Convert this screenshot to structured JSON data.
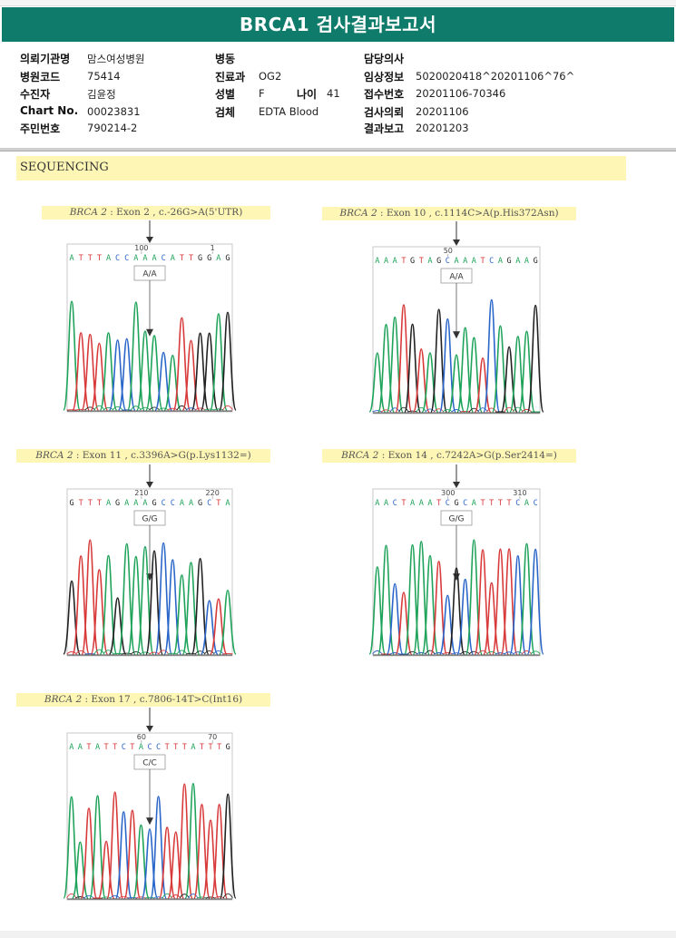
{
  "report": {
    "title": "BRCA1 검사결과보고서"
  },
  "patient": {
    "col1": [
      {
        "label": "의뢰기관명",
        "value": "맘스여성병원"
      },
      {
        "label": "병원코드",
        "value": "75414"
      },
      {
        "label": "수진자",
        "value": "김윤정"
      },
      {
        "label": "Chart No.",
        "value": "00023831"
      },
      {
        "label": "주민번호",
        "value": "790214-2"
      }
    ],
    "col2": [
      {
        "label": "병동",
        "value": ""
      },
      {
        "label": "진료과",
        "value": "OG2"
      },
      {
        "label": "성별",
        "value": "F"
      },
      {
        "label": "검체",
        "value": "EDTA Blood"
      }
    ],
    "age": {
      "label": "나이",
      "value": "41"
    },
    "col3": [
      {
        "label": "담당의사",
        "value": ""
      },
      {
        "label": "임상정보",
        "value": "5020020418^20201106^76^"
      },
      {
        "label": "접수번호",
        "value": "20201106-70346"
      },
      {
        "label": "검사의뢰",
        "value": "20201106"
      },
      {
        "label": "결과보고",
        "value": "20201203"
      }
    ]
  },
  "section": {
    "title": "SEQUENCING"
  },
  "colors": {
    "header": "#0f7b6b",
    "highlight": "#fdf6b4",
    "A": "#1fa35a",
    "C": "#2a66c9",
    "G": "#222222",
    "T": "#d83a3a"
  },
  "variants": [
    {
      "gene": "BRCA 2",
      "desc": " : Exon 2 , c.-26G>A(5'UTR)",
      "seq": "ATTTACCAAACATTGGAG",
      "pos_labels": [
        "100",
        "1"
      ],
      "genotype": "A/A"
    },
    {
      "gene": "BRCA 2",
      "desc": " : Exon 10 , c.1114C>A(p.His372Asn)",
      "seq": "AAATGTAGCAAATCAGAAG",
      "pos_labels": [
        "50"
      ],
      "genotype": "A/A"
    },
    {
      "gene": "BRCA 2",
      "desc": " : Exon 11 , c.3396A>G(p.Lys1132=)",
      "seq": "GTTTAGAAAGCCAAGCTA",
      "pos_labels": [
        "210",
        "220"
      ],
      "genotype": "G/G"
    },
    {
      "gene": "BRCA 2",
      "desc": " : Exon 14 , c.7242A>G(p.Ser2414=)",
      "seq": "AACTAAATCGCATTTTCAC",
      "pos_labels": [
        "300",
        "310"
      ],
      "genotype": "G/G"
    },
    {
      "gene": "BRCA 2",
      "desc": " : Exon 17 , c.7806-14T>C(Int16)",
      "seq": "AATATTCTACCTTTATTTG",
      "pos_labels": [
        "60",
        "70"
      ],
      "genotype": "C/C"
    }
  ]
}
